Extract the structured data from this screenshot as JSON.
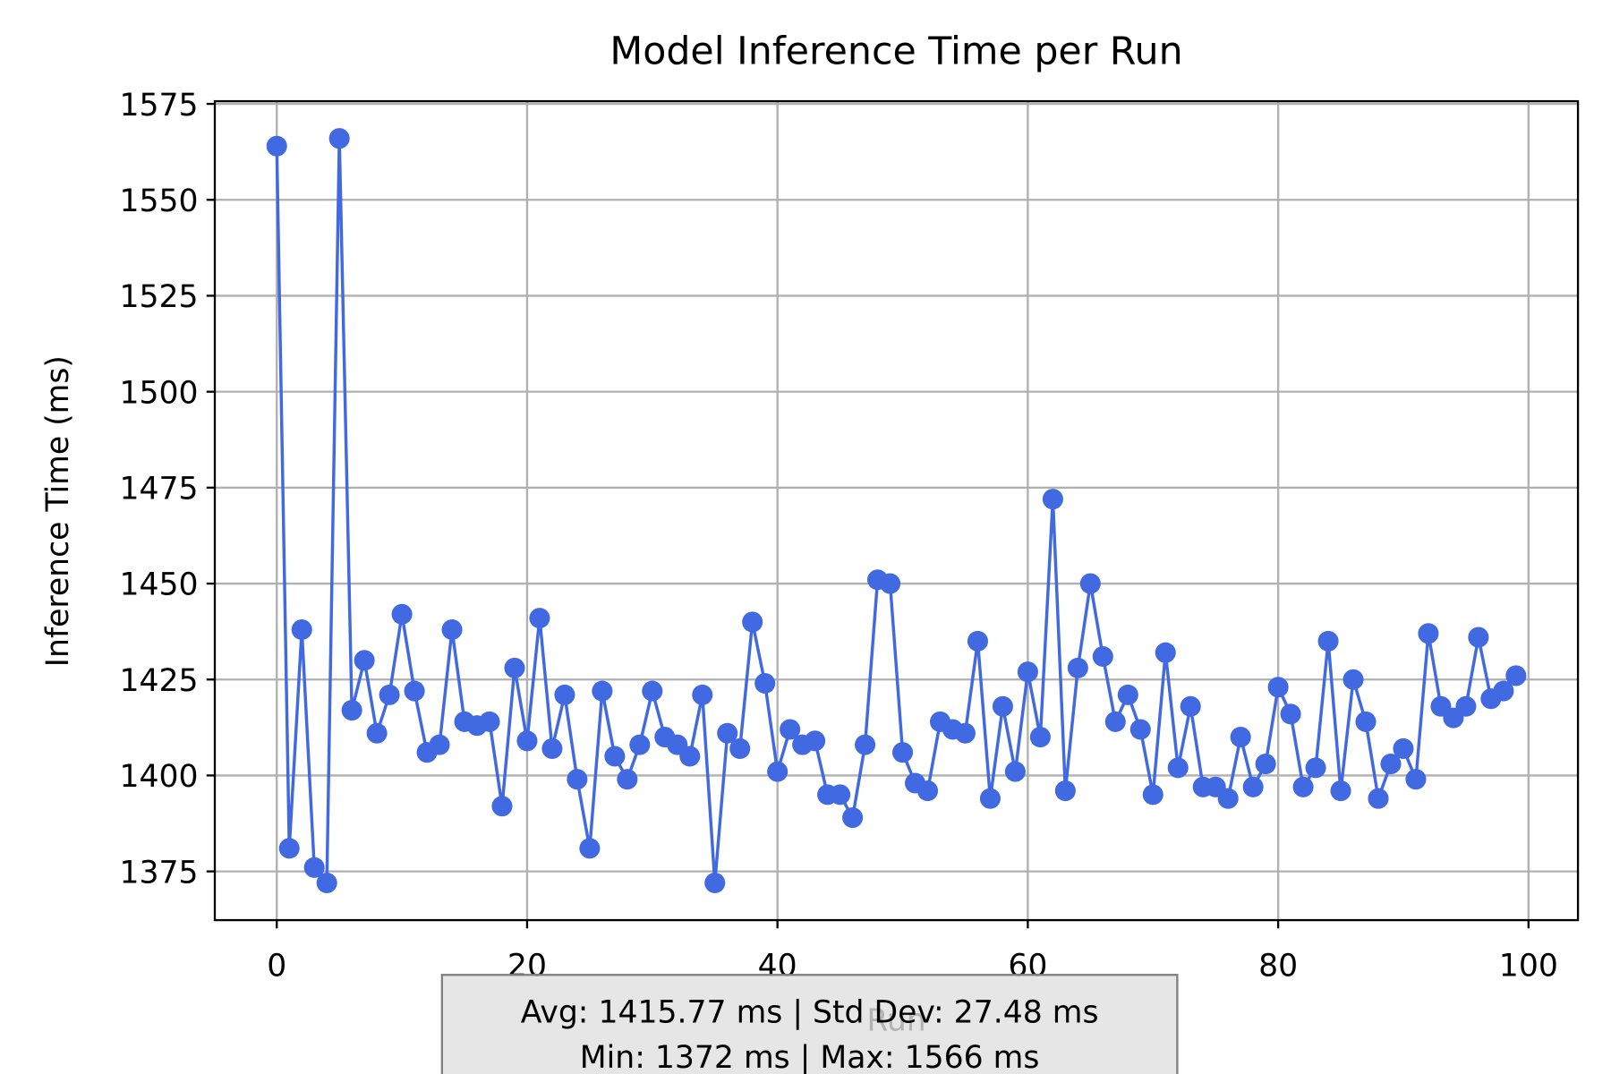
{
  "chart_data": {
    "type": "line",
    "title": "Model Inference Time per Run",
    "x_label": "Run",
    "y_label": "Inference Time (ms)",
    "x": [
      0,
      1,
      2,
      3,
      4,
      5,
      6,
      7,
      8,
      9,
      10,
      11,
      12,
      13,
      14,
      15,
      16,
      17,
      18,
      19,
      20,
      21,
      22,
      23,
      24,
      25,
      26,
      27,
      28,
      29,
      30,
      31,
      32,
      33,
      34,
      35,
      36,
      37,
      38,
      39,
      40,
      41,
      42,
      43,
      44,
      45,
      46,
      47,
      48,
      49,
      50,
      51,
      52,
      53,
      54,
      55,
      56,
      57,
      58,
      59,
      60,
      61,
      62,
      63,
      64,
      65,
      66,
      67,
      68,
      69,
      70,
      71,
      72,
      73,
      74,
      75,
      76,
      77,
      78,
      79,
      80,
      81,
      82,
      83,
      84,
      85,
      86,
      87,
      88,
      89,
      90,
      91,
      92,
      93,
      94,
      95,
      96,
      97,
      98,
      99
    ],
    "series": [
      {
        "color": "#4169e1",
        "values": [
          1564,
          1381,
          1438,
          1376,
          1372,
          1566,
          1417,
          1430,
          1411,
          1421,
          1442,
          1422,
          1406,
          1408,
          1438,
          1414,
          1413,
          1414,
          1392,
          1428,
          1409,
          1441,
          1407,
          1421,
          1399,
          1381,
          1422,
          1405,
          1399,
          1408,
          1422,
          1410,
          1408,
          1405,
          1421,
          1372,
          1411,
          1407,
          1440,
          1424,
          1401,
          1412,
          1408,
          1409,
          1395,
          1395,
          1389,
          1408,
          1451,
          1450,
          1406,
          1398,
          1396,
          1414,
          1412,
          1411,
          1435,
          1394,
          1418,
          1401,
          1427,
          1410,
          1472,
          1396,
          1428,
          1450,
          1431,
          1414,
          1421,
          1412,
          1395,
          1432,
          1402,
          1418,
          1397,
          1397,
          1394,
          1410,
          1397,
          1403,
          1423,
          1416,
          1397,
          1402,
          1435,
          1396,
          1425,
          1414,
          1394,
          1403,
          1407,
          1399,
          1437,
          1418,
          1415,
          1418,
          1436,
          1420,
          1422,
          1426
        ]
      }
    ],
    "xlim": [
      -4.95,
      103.95
    ],
    "xticks": [
      0,
      20,
      40,
      60,
      80,
      100
    ],
    "ylim": [
      1362.3,
      1575.7
    ],
    "yticks": [
      1375,
      1400,
      1425,
      1450,
      1475,
      1500,
      1525,
      1550,
      1575
    ],
    "grid": true,
    "annotation": [
      "Avg: 1415.77 ms | Std Dev: 27.48 ms",
      "Min: 1372 ms | Max: 1566 ms"
    ]
  }
}
